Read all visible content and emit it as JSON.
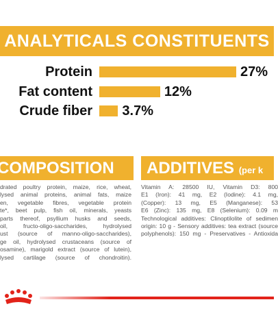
{
  "chart_data": {
    "type": "bar",
    "orientation": "horizontal",
    "title": "ANALYTICALS CONSTITUENTS",
    "categories": [
      "Protein",
      "Fat content",
      "Crude fiber"
    ],
    "values": [
      27,
      12,
      3.7
    ],
    "value_labels": [
      "27%",
      "12%",
      "3.7%"
    ],
    "color": "#f0b12e"
  },
  "composition": {
    "title": "COMPOSITION",
    "lines": [
      "drated poultry protein, maize, rice, wheat,",
      "lysed animal proteins, animal fats, maize",
      "en, vegetable fibres, vegetable protein",
      "te*, beet pulp, fish oil, minerals, yeasts",
      "parts thereof, psyllium husks and seeds,",
      "oil, fructo-oligo-saccharides, hydrolysed",
      "ust (source of manno-oligo-saccharides),",
      "ge oil, hydrolysed crustaceans (source of",
      "osamine), marigold extract (source of lutein),",
      "lysed cartilage (source of chondroitin)."
    ]
  },
  "additives": {
    "title": "ADDITIVES",
    "title_suffix": "(per k",
    "lines": [
      "Vitamin A: 28500 IU, Vitamin D3: 800",
      "E1 (Iron): 41 mg, E2 (Iodine): 4.1 mg,",
      "(Copper): 13 mg, E5 (Manganese): 53",
      "E6 (Zinc): 135 mg, E8 (Selenium): 0.09 m",
      "Technological additives: Clinoptilolite of sedimen",
      "origin: 10 g - Sensory additives: tea extract (source",
      "polyphenols): 150 mg - Preservatives - Antioxida"
    ]
  }
}
